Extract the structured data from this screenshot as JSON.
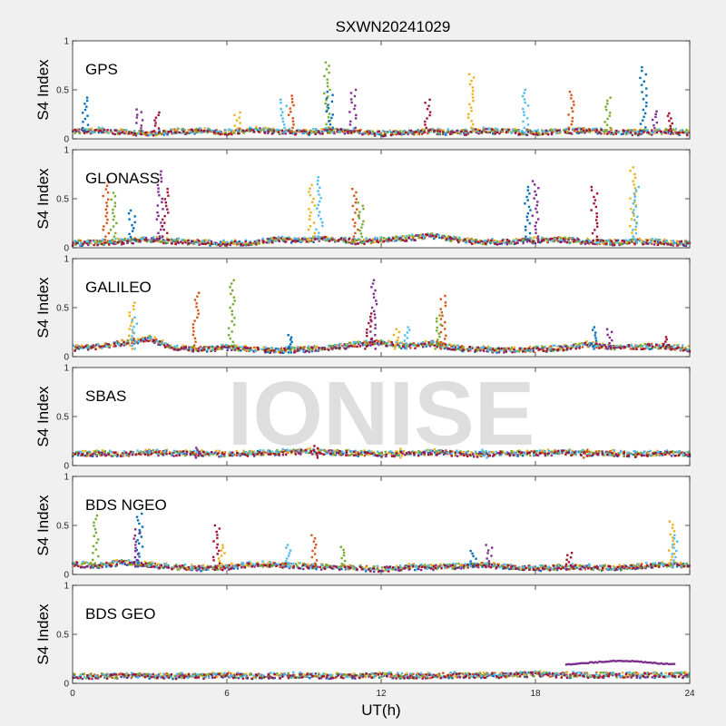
{
  "chart_data": {
    "type": "scatter",
    "title": "SXWN20241029",
    "watermark": "IONISE",
    "xlabel": "UT(h)",
    "ylabel": "S4 Index",
    "xlim": [
      0,
      24
    ],
    "xticks": [
      0,
      6,
      12,
      18,
      24
    ],
    "ylim": [
      0,
      1
    ],
    "yticks": [
      0,
      0.5,
      1
    ],
    "series_colors": [
      "#0072BD",
      "#D95319",
      "#EDB120",
      "#7E2F8E",
      "#77AC30",
      "#4DBEEE",
      "#A2142F"
    ],
    "panels": [
      {
        "label": "GPS",
        "baseline": [
          0.07,
          0.08,
          0.06,
          0.05,
          0.07,
          0.08,
          0.06,
          0.09,
          0.07,
          0.06,
          0.08,
          0.07,
          0.05,
          0.06,
          0.07,
          0.06,
          0.08,
          0.07,
          0.06,
          0.07,
          0.08,
          0.07,
          0.06,
          0.07,
          0.06
        ],
        "spikes": [
          [
            0.5,
            0.42
          ],
          [
            2.6,
            0.3
          ],
          [
            3.3,
            0.27
          ],
          [
            6.4,
            0.27
          ],
          [
            8.2,
            0.4
          ],
          [
            8.5,
            0.44
          ],
          [
            9.9,
            0.78
          ],
          [
            10.0,
            0.48
          ],
          [
            10.9,
            0.5
          ],
          [
            13.8,
            0.4
          ],
          [
            15.5,
            0.66
          ],
          [
            17.6,
            0.5
          ],
          [
            19.4,
            0.48
          ],
          [
            20.8,
            0.42
          ],
          [
            22.2,
            0.73
          ],
          [
            22.6,
            0.28
          ],
          [
            23.2,
            0.26
          ]
        ]
      },
      {
        "label": "GLONASS",
        "baseline": [
          0.04,
          0.05,
          0.06,
          0.08,
          0.06,
          0.05,
          0.04,
          0.05,
          0.08,
          0.07,
          0.09,
          0.06,
          0.07,
          0.09,
          0.12,
          0.07,
          0.05,
          0.06,
          0.07,
          0.08,
          0.06,
          0.05,
          0.06,
          0.05,
          0.04
        ],
        "spikes": [
          [
            1.3,
            0.7
          ],
          [
            1.6,
            0.56
          ],
          [
            2.3,
            0.38
          ],
          [
            3.4,
            0.78
          ],
          [
            3.6,
            0.6
          ],
          [
            9.3,
            0.64
          ],
          [
            9.6,
            0.72
          ],
          [
            11.0,
            0.6
          ],
          [
            11.2,
            0.46
          ],
          [
            17.7,
            0.62
          ],
          [
            18.0,
            0.68
          ],
          [
            20.3,
            0.62
          ],
          [
            21.8,
            0.82
          ],
          [
            21.9,
            0.62
          ]
        ]
      },
      {
        "label": "GALILEO",
        "baseline": [
          0.08,
          0.1,
          0.14,
          0.18,
          0.08,
          0.07,
          0.09,
          0.07,
          0.06,
          0.07,
          0.08,
          0.12,
          0.14,
          0.1,
          0.13,
          0.08,
          0.07,
          0.06,
          0.07,
          0.08,
          0.12,
          0.09,
          0.1,
          0.1,
          0.07
        ],
        "spikes": [
          [
            2.3,
            0.55
          ],
          [
            2.4,
            0.4
          ],
          [
            4.8,
            0.65
          ],
          [
            6.2,
            0.78
          ],
          [
            8.5,
            0.22
          ],
          [
            11.7,
            0.78
          ],
          [
            11.5,
            0.44
          ],
          [
            12.6,
            0.28
          ],
          [
            13.0,
            0.3
          ],
          [
            14.4,
            0.62
          ],
          [
            14.2,
            0.42
          ],
          [
            20.3,
            0.3
          ],
          [
            20.9,
            0.28
          ],
          [
            23.0,
            0.2
          ]
        ]
      },
      {
        "label": "SBAS",
        "baseline": [
          0.11,
          0.12,
          0.11,
          0.13,
          0.12,
          0.12,
          0.11,
          0.12,
          0.13,
          0.14,
          0.13,
          0.12,
          0.11,
          0.12,
          0.13,
          0.12,
          0.11,
          0.12,
          0.12,
          0.13,
          0.12,
          0.12,
          0.11,
          0.12,
          0.11
        ],
        "spikes": [
          [
            4.9,
            0.18
          ],
          [
            9.5,
            0.2
          ],
          [
            12.8,
            0.17
          ],
          [
            16.0,
            0.16
          ],
          [
            20.0,
            0.16
          ]
        ]
      },
      {
        "label": "BDS NGEO",
        "baseline": [
          0.1,
          0.09,
          0.12,
          0.09,
          0.07,
          0.06,
          0.07,
          0.1,
          0.09,
          0.08,
          0.07,
          0.06,
          0.05,
          0.07,
          0.07,
          0.08,
          0.09,
          0.07,
          0.06,
          0.07,
          0.07,
          0.06,
          0.08,
          0.1,
          0.08
        ],
        "spikes": [
          [
            0.9,
            0.6
          ],
          [
            2.6,
            0.62
          ],
          [
            2.5,
            0.46
          ],
          [
            5.6,
            0.5
          ],
          [
            5.8,
            0.3
          ],
          [
            8.4,
            0.3
          ],
          [
            9.4,
            0.4
          ],
          [
            10.5,
            0.28
          ],
          [
            15.6,
            0.24
          ],
          [
            16.2,
            0.3
          ],
          [
            19.3,
            0.22
          ],
          [
            23.3,
            0.54
          ],
          [
            23.4,
            0.4
          ]
        ]
      },
      {
        "label": "BDS GEO",
        "baseline": [
          0.07,
          0.07,
          0.07,
          0.07,
          0.07,
          0.07,
          0.08,
          0.07,
          0.07,
          0.08,
          0.07,
          0.07,
          0.08,
          0.07,
          0.07,
          0.08,
          0.08,
          0.08,
          0.09,
          0.08,
          0.08,
          0.08,
          0.08,
          0.08,
          0.08
        ],
        "arc": {
          "start": 19.2,
          "end": 23.4,
          "values": [
            0.19,
            0.2,
            0.21,
            0.22,
            0.23,
            0.23,
            0.22,
            0.21,
            0.2,
            0.2
          ]
        },
        "spikes": []
      }
    ]
  }
}
